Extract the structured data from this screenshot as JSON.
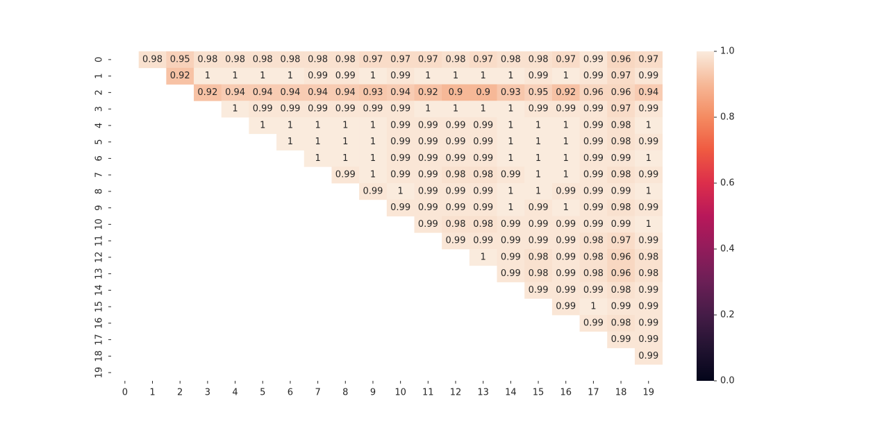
{
  "chart_data": {
    "type": "heatmap",
    "title": "",
    "xlabel": "",
    "ylabel": "",
    "x_categories": [
      "0",
      "1",
      "2",
      "3",
      "4",
      "5",
      "6",
      "7",
      "8",
      "9",
      "10",
      "11",
      "12",
      "13",
      "14",
      "15",
      "16",
      "17",
      "18",
      "19"
    ],
    "y_categories": [
      "0",
      "1",
      "2",
      "3",
      "4",
      "5",
      "6",
      "7",
      "8",
      "9",
      "10",
      "11",
      "12",
      "13",
      "14",
      "15",
      "16",
      "17",
      "18",
      "19"
    ],
    "mask": "lower-triangle-and-diagonal",
    "annotate": true,
    "cmap": "rocket",
    "colorbar": {
      "vmin": 0.0,
      "vmax": 1.0,
      "tick_labels": [
        "0.0",
        "0.2",
        "0.4",
        "0.6",
        "0.8",
        "1.0"
      ],
      "position": "right"
    },
    "values": [
      [
        null,
        0.98,
        0.95,
        0.98,
        0.98,
        0.98,
        0.98,
        0.98,
        0.98,
        0.97,
        0.97,
        0.97,
        0.98,
        0.97,
        0.98,
        0.98,
        0.97,
        0.99,
        0.96,
        0.97
      ],
      [
        null,
        null,
        0.92,
        1,
        1,
        1,
        1,
        0.99,
        0.99,
        1,
        0.99,
        1,
        1,
        1,
        1,
        0.99,
        1,
        0.99,
        0.97,
        0.99
      ],
      [
        null,
        null,
        null,
        0.92,
        0.94,
        0.94,
        0.94,
        0.94,
        0.94,
        0.93,
        0.94,
        0.92,
        0.9,
        0.9,
        0.93,
        0.95,
        0.92,
        0.96,
        0.96,
        0.94
      ],
      [
        null,
        null,
        null,
        null,
        1,
        0.99,
        0.99,
        0.99,
        0.99,
        0.99,
        0.99,
        1,
        1,
        1,
        1,
        0.99,
        0.99,
        0.99,
        0.97,
        0.99
      ],
      [
        null,
        null,
        null,
        null,
        null,
        1,
        1,
        1,
        1,
        1,
        0.99,
        0.99,
        0.99,
        0.99,
        1,
        1,
        1,
        0.99,
        0.98,
        1
      ],
      [
        null,
        null,
        null,
        null,
        null,
        null,
        1,
        1,
        1,
        1,
        0.99,
        0.99,
        0.99,
        0.99,
        1,
        1,
        1,
        0.99,
        0.98,
        0.99
      ],
      [
        null,
        null,
        null,
        null,
        null,
        null,
        null,
        1,
        1,
        1,
        0.99,
        0.99,
        0.99,
        0.99,
        1,
        1,
        1,
        0.99,
        0.99,
        1
      ],
      [
        null,
        null,
        null,
        null,
        null,
        null,
        null,
        null,
        0.99,
        1,
        0.99,
        0.99,
        0.98,
        0.98,
        0.99,
        1,
        1,
        0.99,
        0.98,
        0.99
      ],
      [
        null,
        null,
        null,
        null,
        null,
        null,
        null,
        null,
        null,
        0.99,
        1,
        0.99,
        0.99,
        0.99,
        1,
        1,
        0.99,
        0.99,
        0.99,
        1
      ],
      [
        null,
        null,
        null,
        null,
        null,
        null,
        null,
        null,
        null,
        null,
        0.99,
        0.99,
        0.99,
        0.99,
        1,
        0.99,
        1,
        0.99,
        0.98,
        0.99
      ],
      [
        null,
        null,
        null,
        null,
        null,
        null,
        null,
        null,
        null,
        null,
        null,
        0.99,
        0.98,
        0.98,
        0.99,
        0.99,
        0.99,
        0.99,
        0.99,
        1
      ],
      [
        null,
        null,
        null,
        null,
        null,
        null,
        null,
        null,
        null,
        null,
        null,
        null,
        0.99,
        0.99,
        0.99,
        0.99,
        0.99,
        0.98,
        0.97,
        0.99
      ],
      [
        null,
        null,
        null,
        null,
        null,
        null,
        null,
        null,
        null,
        null,
        null,
        null,
        null,
        1,
        0.99,
        0.98,
        0.99,
        0.98,
        0.96,
        0.98
      ],
      [
        null,
        null,
        null,
        null,
        null,
        null,
        null,
        null,
        null,
        null,
        null,
        null,
        null,
        null,
        0.99,
        0.98,
        0.99,
        0.98,
        0.96,
        0.98
      ],
      [
        null,
        null,
        null,
        null,
        null,
        null,
        null,
        null,
        null,
        null,
        null,
        null,
        null,
        null,
        null,
        0.99,
        0.99,
        0.99,
        0.98,
        0.99
      ],
      [
        null,
        null,
        null,
        null,
        null,
        null,
        null,
        null,
        null,
        null,
        null,
        null,
        null,
        null,
        null,
        null,
        0.99,
        1,
        0.99,
        0.99
      ],
      [
        null,
        null,
        null,
        null,
        null,
        null,
        null,
        null,
        null,
        null,
        null,
        null,
        null,
        null,
        null,
        null,
        null,
        0.99,
        0.98,
        0.99
      ],
      [
        null,
        null,
        null,
        null,
        null,
        null,
        null,
        null,
        null,
        null,
        null,
        null,
        null,
        null,
        null,
        null,
        null,
        null,
        0.99,
        0.99
      ],
      [
        null,
        null,
        null,
        null,
        null,
        null,
        null,
        null,
        null,
        null,
        null,
        null,
        null,
        null,
        null,
        null,
        null,
        null,
        null,
        0.99
      ],
      [
        null,
        null,
        null,
        null,
        null,
        null,
        null,
        null,
        null,
        null,
        null,
        null,
        null,
        null,
        null,
        null,
        null,
        null,
        null,
        null
      ]
    ],
    "y_tick_labels_order": [
      "0",
      "1",
      "2",
      "3",
      "4",
      "5",
      "6",
      "7",
      "8",
      "9",
      "10",
      "11",
      "12",
      "13",
      "14",
      "15",
      "16",
      "17",
      "18",
      "19"
    ]
  }
}
